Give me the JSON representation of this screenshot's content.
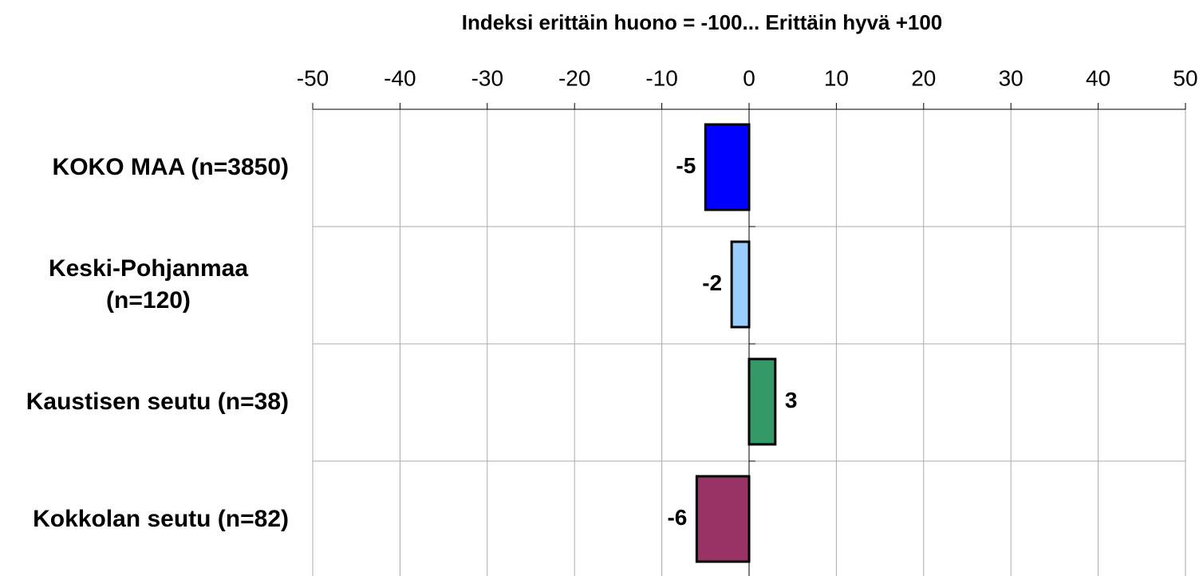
{
  "chart_data": {
    "type": "hbar",
    "title": "Indeksi erittäin huono = -100... Erittäin hyvä +100",
    "categories": [
      "KOKO MAA (n=3850)",
      "Keski-Pohjanmaa (n=120)",
      "Kaustisen seutu (n=38)",
      "Kokkolan seutu (n=82)"
    ],
    "values": [
      -5,
      -2,
      3,
      -6
    ],
    "colors": [
      "#0000ff",
      "#99ccff",
      "#339966",
      "#993366"
    ],
    "xlim": [
      -50,
      50
    ],
    "xticks": [
      -50,
      -40,
      -30,
      -20,
      -10,
      0,
      10,
      20,
      30,
      40,
      50
    ],
    "grid": true
  }
}
